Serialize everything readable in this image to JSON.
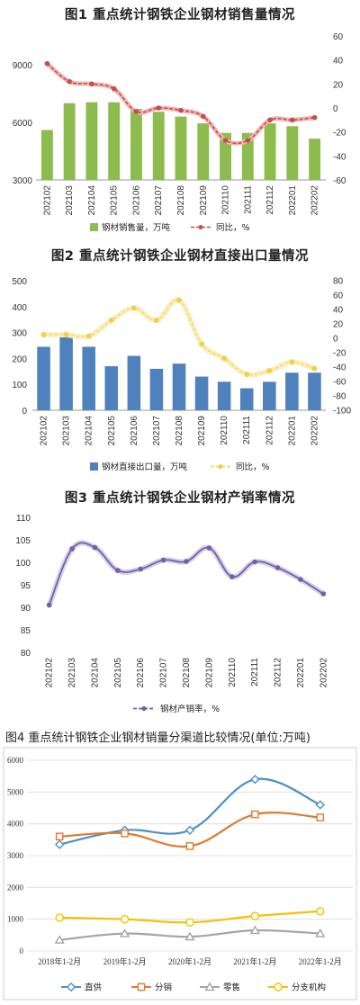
{
  "chart_data": [
    {
      "type": "bar+line",
      "title": "图1  重点统计钢铁企业钢材销售量情况",
      "categories": [
        "202102",
        "202103",
        "202104",
        "202105",
        "202106",
        "202107",
        "202108",
        "202109",
        "202110",
        "202111",
        "202112",
        "202201",
        "202202"
      ],
      "series": [
        {
          "name": "钢材销售量，万吨",
          "type": "bar",
          "axis": "left",
          "color": "#8dbb4e",
          "values": [
            5600,
            7000,
            7050,
            7050,
            6700,
            6550,
            6300,
            5950,
            5450,
            5450,
            5950,
            5800,
            5150
          ]
        },
        {
          "name": "同比，%",
          "type": "line",
          "axis": "right",
          "color": "#c0504d",
          "values": [
            37,
            22,
            20,
            16,
            -3,
            0,
            -2,
            -7,
            -27,
            -27,
            -10,
            -10,
            -8
          ]
        }
      ],
      "y_left": {
        "lim": [
          3000,
          10500
        ],
        "ticks": [
          3000,
          6000,
          9000
        ]
      },
      "y_right": {
        "lim": [
          -60,
          60
        ],
        "ticks": [
          -60,
          -40,
          -20,
          0,
          20,
          40,
          60
        ]
      },
      "legend": "bottom"
    },
    {
      "type": "bar+line",
      "title": "图2  重点统计钢铁企业钢材直接出口量情况",
      "categories": [
        "202102",
        "202103",
        "202104",
        "202105",
        "202106",
        "202107",
        "202108",
        "202109",
        "202110",
        "202111",
        "202112",
        "202201",
        "202202"
      ],
      "series": [
        {
          "name": "钢材直接出口量，万吨",
          "type": "bar",
          "axis": "left",
          "color": "#4f81bd",
          "values": [
            245,
            285,
            245,
            170,
            210,
            160,
            180,
            130,
            110,
            85,
            110,
            145,
            145
          ]
        },
        {
          "name": "同比，%",
          "type": "line",
          "axis": "right",
          "color": "#f5df7a",
          "values": [
            5,
            5,
            3,
            25,
            42,
            25,
            53,
            -8,
            -28,
            -50,
            -45,
            -33,
            -42
          ]
        }
      ],
      "y_left": {
        "lim": [
          0,
          500
        ],
        "ticks": [
          0,
          100,
          200,
          300,
          400,
          500
        ]
      },
      "y_right": {
        "lim": [
          -100,
          80
        ],
        "ticks": [
          -100,
          -80,
          -60,
          -40,
          -20,
          0,
          20,
          40,
          60,
          80
        ]
      },
      "legend": "bottom"
    },
    {
      "type": "line",
      "title": "图3  重点统计钢铁企业钢材产销率情况",
      "categories": [
        "202102",
        "202103",
        "202104",
        "202105",
        "202106",
        "202107",
        "202108",
        "202109",
        "202110",
        "202111",
        "202112",
        "202201",
        "202202"
      ],
      "series": [
        {
          "name": "钢材产销率，%",
          "color": "#7060a8",
          "values": [
            90.5,
            103,
            103.3,
            98.2,
            98.5,
            100.5,
            100.2,
            103.2,
            96.8,
            100.1,
            98.8,
            96.2,
            93
          ]
        }
      ],
      "ylim": [
        80,
        110
      ],
      "yticks": [
        80,
        85,
        90,
        95,
        100,
        105,
        110
      ],
      "legend": "bottom"
    },
    {
      "type": "line",
      "title": "图4  重点统计钢铁企业钢材销量分渠道比较情况(单位:万吨)",
      "categories": [
        "2018年1-2月",
        "2019年1-2月",
        "2020年1-2月",
        "2021年1-2月",
        "2022年1-2月"
      ],
      "series": [
        {
          "name": "直供",
          "color": "#4a90c8",
          "marker": "diamond",
          "values": [
            3350,
            3800,
            3800,
            5400,
            4600
          ]
        },
        {
          "name": "分销",
          "color": "#e07a30",
          "marker": "square",
          "values": [
            3600,
            3700,
            3300,
            4300,
            4200
          ]
        },
        {
          "name": "零售",
          "color": "#a5a5a5",
          "marker": "triangle",
          "values": [
            350,
            550,
            450,
            650,
            550
          ]
        },
        {
          "name": "分支机构",
          "color": "#f2c200",
          "marker": "circle",
          "values": [
            1050,
            1000,
            900,
            1100,
            1250
          ]
        }
      ],
      "ylim": [
        0,
        6000
      ],
      "yticks": [
        0,
        1000,
        2000,
        3000,
        4000,
        5000,
        6000
      ],
      "grid": true,
      "legend": "bottom"
    }
  ]
}
